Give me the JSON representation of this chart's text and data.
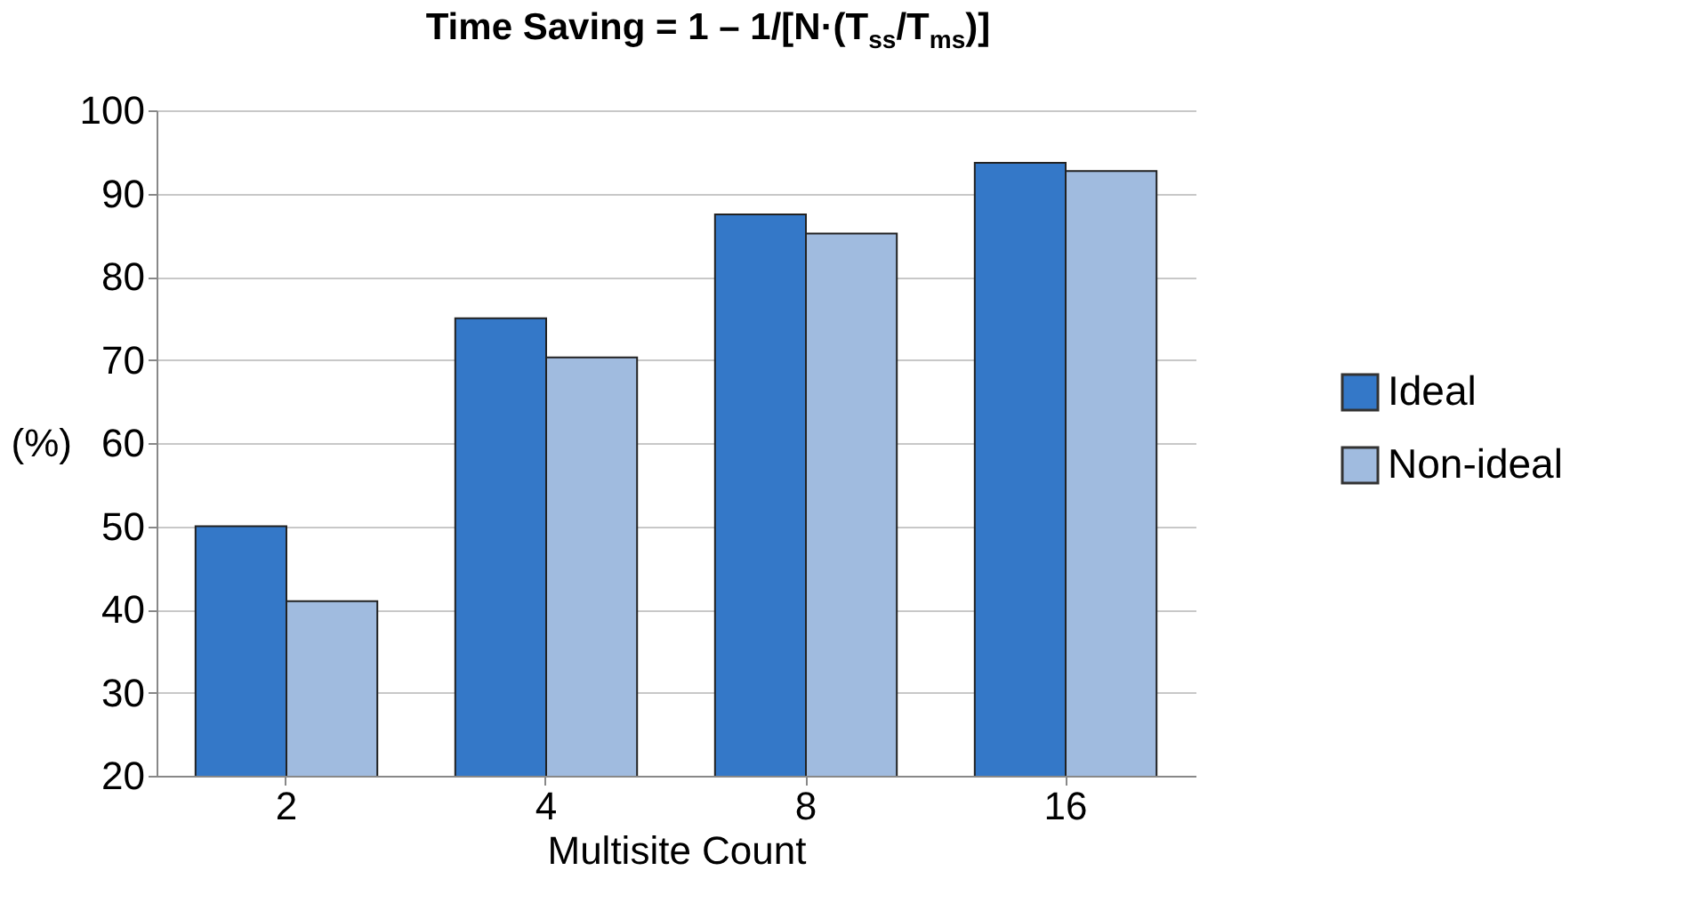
{
  "chart_data": {
    "type": "bar",
    "title": "Time Saving = 1 – 1/[N·(T$_{ss}$/T$_{ms}$)]",
    "xlabel": "Multisite Count",
    "ylabel": "(%)",
    "categories": [
      "2",
      "4",
      "8",
      "16"
    ],
    "series": [
      {
        "name": "Ideal",
        "color": "#3478c8",
        "values": [
          50,
          75,
          87.5,
          93.7
        ]
      },
      {
        "name": "Non-ideal",
        "color": "#a0bbdf",
        "values": [
          41,
          70.3,
          85.2,
          92.7
        ]
      }
    ],
    "ylim": [
      20,
      100
    ],
    "yticks": [
      20,
      30,
      40,
      50,
      60,
      70,
      80,
      90,
      100
    ],
    "grid": "y",
    "legend": "right"
  }
}
